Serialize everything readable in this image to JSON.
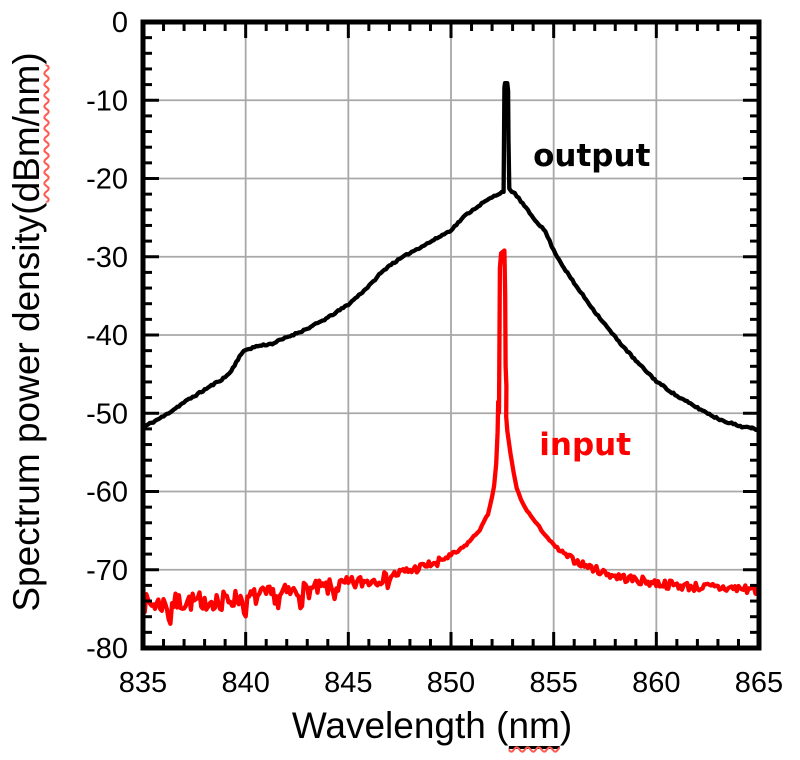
{
  "figure": {
    "background": "#ffffff"
  },
  "chart_data": {
    "type": "line",
    "title": "",
    "xlabel": {
      "prefix": "Wavelength (",
      "underlined": "nm",
      "suffix": ")"
    },
    "ylabel": {
      "prefix": "Spectrum power density(",
      "underlined": "dBm/nm",
      "suffix": ")"
    },
    "xlim": [
      835,
      865
    ],
    "ylim": [
      -80,
      0
    ],
    "x_major_ticks": [
      835,
      840,
      845,
      850,
      855,
      860,
      865
    ],
    "x_minor_step": 1,
    "y_major_ticks": [
      0,
      -10,
      -20,
      -30,
      -40,
      -50,
      -60,
      -70,
      -80
    ],
    "y_minor_step": 2,
    "grid": true,
    "grid_color": "#a8a8a8",
    "axis_color": "#000000",
    "tick_label_color": "#000000",
    "series": [
      {
        "name": "output",
        "color": "#000000",
        "stroke_width": 4.3,
        "seed": 11,
        "label": {
          "text": "output",
          "x": 854.0,
          "y": -17.3
        },
        "noise": [
          [
            835,
            0.13
          ],
          [
            851.5,
            0.1
          ],
          [
            854,
            0.1
          ],
          [
            865,
            0.13
          ]
        ],
        "anchors": [
          [
            835,
            -51.8
          ],
          [
            835.5,
            -51.1
          ],
          [
            836,
            -50.4
          ],
          [
            837,
            -48.6
          ],
          [
            838,
            -47.0
          ],
          [
            839,
            -45.4
          ],
          [
            839.3,
            -44.6
          ],
          [
            839.7,
            -42.7
          ],
          [
            840,
            -41.9
          ],
          [
            840.6,
            -41.4
          ],
          [
            841.3,
            -41.1
          ],
          [
            842,
            -40.3
          ],
          [
            843,
            -39.2
          ],
          [
            844,
            -37.8
          ],
          [
            845,
            -36.1
          ],
          [
            845.6,
            -34.7
          ],
          [
            846.1,
            -33.5
          ],
          [
            846.5,
            -32.3
          ],
          [
            847,
            -31.1
          ],
          [
            848,
            -29.5
          ],
          [
            849,
            -28.1
          ],
          [
            850,
            -26.6
          ],
          [
            850.7,
            -24.7
          ],
          [
            851.5,
            -23.2
          ],
          [
            852,
            -22.4
          ],
          [
            852.3,
            -22.0
          ],
          [
            852.56,
            -21.6
          ],
          [
            852.6,
            -8.4
          ],
          [
            852.63,
            -7.9
          ],
          [
            852.74,
            -7.9
          ],
          [
            852.78,
            -8.8
          ],
          [
            852.8,
            -15.2
          ],
          [
            852.84,
            -21.2
          ],
          [
            852.95,
            -21.7
          ],
          [
            853.1,
            -21.9
          ],
          [
            853.4,
            -22.9
          ],
          [
            854,
            -25.0
          ],
          [
            854.6,
            -26.8
          ],
          [
            855,
            -29.2
          ],
          [
            855.5,
            -31.4
          ],
          [
            856,
            -33.4
          ],
          [
            857,
            -37.0
          ],
          [
            858,
            -40.3
          ],
          [
            859,
            -43.3
          ],
          [
            860,
            -45.9
          ],
          [
            861,
            -47.8
          ],
          [
            862,
            -49.3
          ],
          [
            863,
            -50.7
          ],
          [
            864,
            -51.6
          ],
          [
            865,
            -52.1
          ]
        ]
      },
      {
        "name": "input",
        "color": "#fe0000",
        "stroke_width": 4.3,
        "seed": 7,
        "label": {
          "text": "input",
          "x": 854.3,
          "y": -54.2
        },
        "noise": [
          [
            835,
            1.25
          ],
          [
            842,
            1.15
          ],
          [
            845,
            1.0
          ],
          [
            847,
            0.8
          ],
          [
            849,
            0.5
          ],
          [
            850.5,
            0.25
          ],
          [
            851.3,
            0.1
          ],
          [
            854.8,
            0.12
          ],
          [
            855.8,
            0.4
          ],
          [
            858,
            0.55
          ],
          [
            862,
            0.6
          ],
          [
            865,
            0.7
          ]
        ],
        "dips": [
          [
            836.3,
            2.9
          ],
          [
            837.9,
            2.3
          ],
          [
            838.8,
            1.7
          ],
          [
            840.0,
            2.8
          ],
          [
            841.6,
            1.6
          ],
          [
            842.7,
            1.5
          ],
          [
            844.3,
            1.2
          ],
          [
            846.9,
            0.9
          ],
          [
            849.3,
            0.7
          ]
        ],
        "anchors": [
          [
            835,
            -74.3
          ],
          [
            836,
            -74.4
          ],
          [
            837,
            -74.1
          ],
          [
            838,
            -74.0
          ],
          [
            839,
            -73.8
          ],
          [
            840,
            -73.6
          ],
          [
            841,
            -73.3
          ],
          [
            842,
            -73.0
          ],
          [
            843,
            -72.6
          ],
          [
            844,
            -72.3
          ],
          [
            845,
            -71.9
          ],
          [
            846,
            -71.4
          ],
          [
            847,
            -70.8
          ],
          [
            848,
            -70.1
          ],
          [
            849,
            -69.3
          ],
          [
            850,
            -68.2
          ],
          [
            850.5,
            -67.4
          ],
          [
            851,
            -66.1
          ],
          [
            851.4,
            -64.9
          ],
          [
            851.8,
            -62.9
          ],
          [
            852,
            -60.6
          ],
          [
            852.1,
            -59.2
          ],
          [
            852.2,
            -56.5
          ],
          [
            852.27,
            -52.5
          ],
          [
            852.3,
            -48.6
          ],
          [
            852.34,
            -50.0
          ],
          [
            852.38,
            -31.5
          ],
          [
            852.44,
            -29.5
          ],
          [
            852.6,
            -29.3
          ],
          [
            852.64,
            -35.0
          ],
          [
            852.66,
            -44.0
          ],
          [
            852.7,
            -46.5
          ],
          [
            852.69,
            -50.5
          ],
          [
            852.74,
            -52.3
          ],
          [
            852.9,
            -55.2
          ],
          [
            853.05,
            -57.6
          ],
          [
            853.2,
            -59.6
          ],
          [
            853.5,
            -61.6
          ],
          [
            853.8,
            -62.8
          ],
          [
            854.1,
            -63.9
          ],
          [
            854.4,
            -64.9
          ],
          [
            854.7,
            -65.9
          ],
          [
            855,
            -66.9
          ],
          [
            855.5,
            -68.0
          ],
          [
            856,
            -68.8
          ],
          [
            856.5,
            -69.4
          ],
          [
            857,
            -69.9
          ],
          [
            857.5,
            -70.4
          ],
          [
            858,
            -70.8
          ],
          [
            859,
            -71.3
          ],
          [
            860,
            -71.7
          ],
          [
            861,
            -72.0
          ],
          [
            862,
            -72.2
          ],
          [
            863,
            -72.3
          ],
          [
            864,
            -72.4
          ],
          [
            865,
            -72.5
          ]
        ]
      }
    ]
  }
}
